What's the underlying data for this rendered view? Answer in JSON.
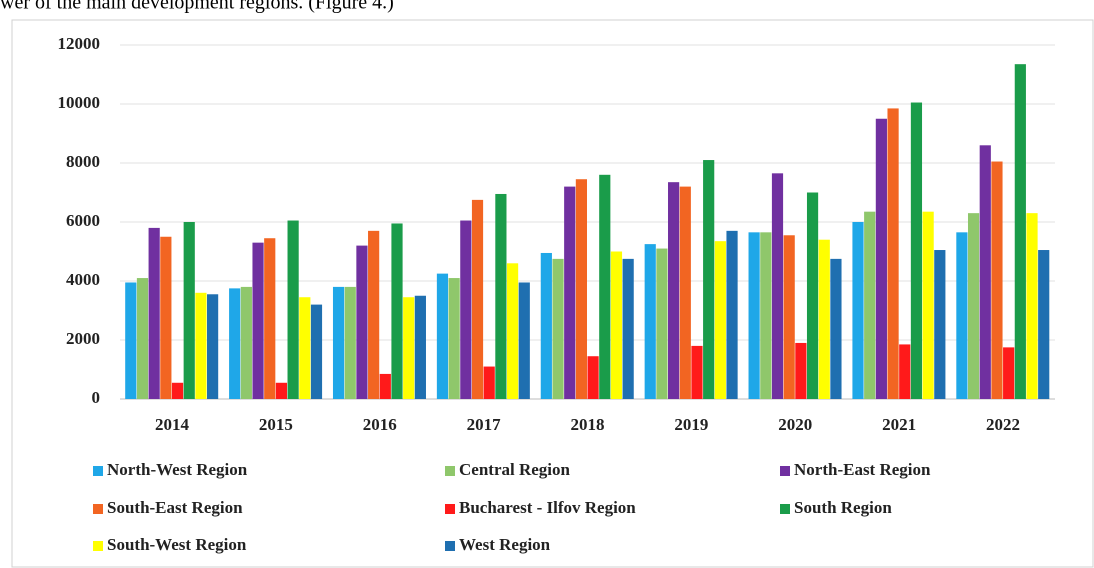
{
  "caption": "wer of the main development regions. (Figure 4.)",
  "chart_data": {
    "type": "bar",
    "categories": [
      "2014",
      "2015",
      "2016",
      "2017",
      "2018",
      "2019",
      "2020",
      "2021",
      "2022"
    ],
    "series": [
      {
        "name": "North-West Region",
        "color": "#1fa7e8",
        "values": [
          3950,
          3750,
          3800,
          4250,
          4950,
          5250,
          5650,
          6000,
          5650
        ]
      },
      {
        "name": "Central Region",
        "color": "#8fc76b",
        "values": [
          4100,
          3800,
          3800,
          4100,
          4750,
          5100,
          5650,
          6350,
          6300
        ]
      },
      {
        "name": "North-East Region",
        "color": "#7030a0",
        "values": [
          5800,
          5300,
          5200,
          6050,
          7200,
          7350,
          7650,
          9500,
          8600
        ]
      },
      {
        "name": "South-East Region",
        "color": "#f26522",
        "values": [
          5500,
          5450,
          5700,
          6750,
          7450,
          7200,
          5550,
          9850,
          8050
        ]
      },
      {
        "name": "Bucharest - Ilfov Region",
        "color": "#ff1a1a",
        "values": [
          550,
          550,
          850,
          1100,
          1450,
          1800,
          1900,
          1850,
          1750
        ]
      },
      {
        "name": "South Region",
        "color": "#1a9c4a",
        "values": [
          6000,
          6050,
          5950,
          6950,
          7600,
          8100,
          7000,
          10050,
          11350
        ]
      },
      {
        "name": "South-West Region",
        "color": "#ffff00",
        "values": [
          3600,
          3450,
          3450,
          4600,
          5000,
          5350,
          5400,
          6350,
          6300
        ]
      },
      {
        "name": "West Region",
        "color": "#1f6fb0",
        "values": [
          3550,
          3200,
          3500,
          3950,
          4750,
          5700,
          4750,
          5050,
          5050
        ]
      }
    ],
    "ylim": [
      0,
      12000
    ],
    "yticks": [
      0,
      2000,
      4000,
      6000,
      8000,
      10000,
      12000
    ],
    "grid": true
  }
}
